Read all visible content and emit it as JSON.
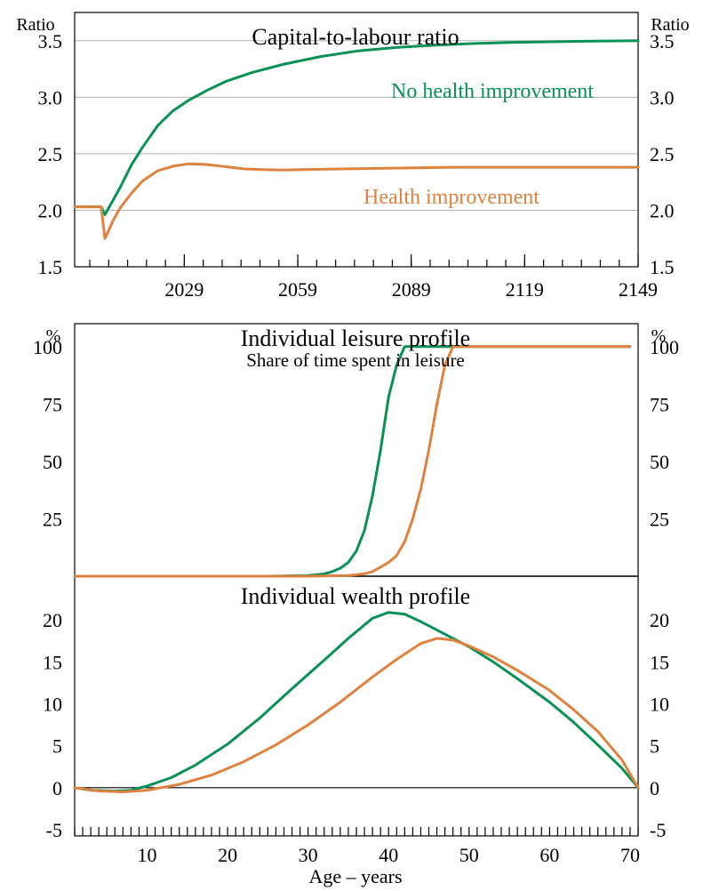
{
  "colors": {
    "green": "#0a9156",
    "orange": "#e0823f"
  },
  "chart_data": [
    {
      "type": "line",
      "title": "Capital-to-labour ratio",
      "ylabel_left": "Ratio",
      "ylabel_right": "Ratio",
      "xlim": [
        2000,
        2149
      ],
      "ylim": [
        1.5,
        3.75
      ],
      "yticks": [
        1.5,
        2.0,
        2.5,
        3.0,
        3.5
      ],
      "ytick_labels": [
        "1.5",
        "2.0",
        "2.5",
        "3.0",
        "3.5"
      ],
      "xticks": [
        2029,
        2059,
        2089,
        2119,
        2149
      ],
      "xtick_labels": [
        "2029",
        "2059",
        "2089",
        "2119",
        "2149"
      ],
      "grid": true,
      "series": [
        {
          "name": "No health improvement",
          "color": "#0a9156",
          "x": [
            2000,
            2007,
            2008,
            2009,
            2010,
            2012,
            2015,
            2018,
            2022,
            2026,
            2030,
            2035,
            2040,
            2047,
            2055,
            2065,
            2075,
            2085,
            2095,
            2105,
            2115,
            2125,
            2135,
            2149
          ],
          "y": [
            2.03,
            2.03,
            1.96,
            2.02,
            2.08,
            2.2,
            2.4,
            2.56,
            2.75,
            2.88,
            2.97,
            3.06,
            3.14,
            3.22,
            3.29,
            3.36,
            3.41,
            3.44,
            3.46,
            3.475,
            3.485,
            3.49,
            3.495,
            3.5
          ]
        },
        {
          "name": "Health improvement",
          "color": "#e0823f",
          "x": [
            2000,
            2007,
            2008,
            2009,
            2010,
            2012,
            2015,
            2018,
            2022,
            2026,
            2030,
            2035,
            2040,
            2045,
            2050,
            2055,
            2060,
            2070,
            2080,
            2090,
            2100,
            2110,
            2120,
            2135,
            2149
          ],
          "y": [
            2.03,
            2.03,
            1.75,
            1.82,
            1.9,
            2.02,
            2.15,
            2.26,
            2.35,
            2.39,
            2.41,
            2.405,
            2.385,
            2.365,
            2.36,
            2.355,
            2.36,
            2.365,
            2.37,
            2.375,
            2.38,
            2.38,
            2.38,
            2.38,
            2.38
          ]
        }
      ]
    },
    {
      "type": "line",
      "title": "Individual leisure profile",
      "subtitle": "Share of time spent in leisure",
      "ylabel_left": "%",
      "ylabel_right": "%",
      "xlim": [
        1,
        71
      ],
      "ylim": [
        0,
        110
      ],
      "yticks": [
        25,
        50,
        75,
        100
      ],
      "ytick_labels": [
        "25",
        "50",
        "75",
        "100"
      ],
      "grid": false,
      "series": [
        {
          "name": "No health improvement",
          "color": "#0a9156",
          "x": [
            1,
            25,
            30,
            32,
            33,
            34,
            35,
            36,
            37,
            38,
            39,
            40,
            41,
            42,
            45,
            50,
            60,
            70
          ],
          "y": [
            0,
            0,
            0.3,
            1,
            2,
            3.5,
            6,
            11,
            20,
            35,
            55,
            78,
            92,
            100,
            100,
            100,
            100,
            100
          ]
        },
        {
          "name": "Health improvement",
          "color": "#e0823f",
          "x": [
            1,
            30,
            35,
            37,
            38,
            39,
            40,
            41,
            42,
            43,
            44,
            45,
            46,
            47,
            48,
            50,
            60,
            70
          ],
          "y": [
            0,
            0,
            0.3,
            1,
            2,
            4,
            6,
            9,
            15,
            25,
            38,
            55,
            75,
            92,
            100,
            100,
            100,
            100
          ]
        }
      ]
    },
    {
      "type": "line",
      "title": "Individual wealth profile",
      "xlabel": "Age – years",
      "xlim": [
        1,
        71
      ],
      "ylim": [
        -5,
        25
      ],
      "yticks": [
        -5,
        0,
        5,
        10,
        15,
        20
      ],
      "ytick_labels": [
        "-5",
        "0",
        "5",
        "10",
        "15",
        "20"
      ],
      "xticks": [
        10,
        20,
        30,
        40,
        50,
        60,
        70
      ],
      "xtick_labels": [
        "10",
        "20",
        "30",
        "40",
        "50",
        "60",
        "70"
      ],
      "grid": false,
      "series": [
        {
          "name": "No health improvement",
          "color": "#0a9156",
          "x": [
            1,
            3,
            6,
            8,
            10,
            13,
            16,
            20,
            24,
            28,
            32,
            35,
            38,
            40,
            42,
            44,
            47,
            50,
            53,
            56,
            60,
            63,
            66,
            69,
            71
          ],
          "y": [
            0,
            -0.3,
            -0.4,
            -0.3,
            0.2,
            1.2,
            2.7,
            5.2,
            8.3,
            11.8,
            15.2,
            17.8,
            20.2,
            20.9,
            20.7,
            19.8,
            18.3,
            16.8,
            15,
            13,
            10.2,
            7.8,
            5.1,
            2.3,
            0
          ]
        },
        {
          "name": "Health improvement",
          "color": "#e0823f",
          "x": [
            1,
            4,
            7,
            10,
            14,
            18,
            22,
            26,
            30,
            34,
            38,
            41,
            44,
            46,
            48,
            50,
            53,
            56,
            60,
            63,
            66,
            69,
            71
          ],
          "y": [
            0,
            -0.4,
            -0.5,
            -0.3,
            0.4,
            1.5,
            3.1,
            5.1,
            7.5,
            10.2,
            13.2,
            15.3,
            17.2,
            17.8,
            17.6,
            16.9,
            15.6,
            14,
            11.6,
            9.3,
            6.7,
            3.3,
            0
          ]
        }
      ]
    }
  ],
  "labels": {
    "panel1_green": "No health improvement",
    "panel1_orange": "Health improvement"
  }
}
